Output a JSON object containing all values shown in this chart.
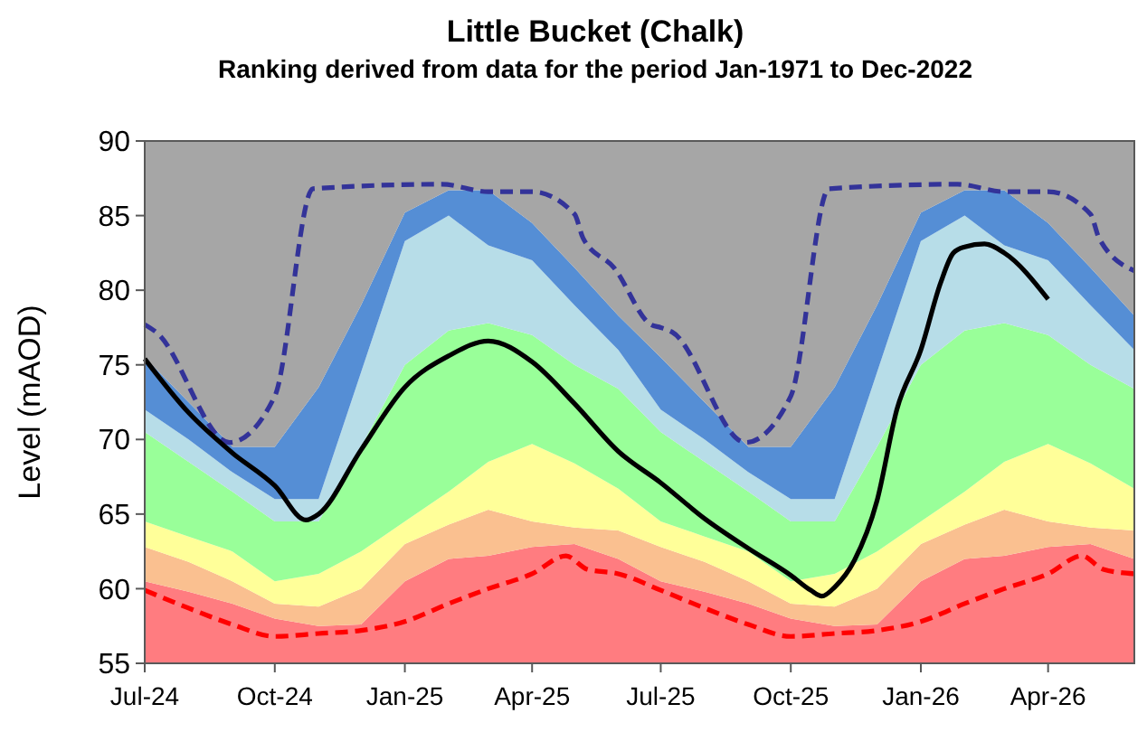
{
  "chart_data": {
    "type": "area",
    "title": "Little Bucket (Chalk)",
    "subtitle": "Ranking derived from data for the period Jan-1971 to Dec-2022",
    "ylabel": "Level (mAOD)",
    "x": [
      "2024-07-01",
      "2024-08-01",
      "2024-09-01",
      "2024-10-01",
      "2024-11-01",
      "2024-12-01",
      "2025-01-01",
      "2025-02-01",
      "2025-03-01",
      "2025-04-01",
      "2025-05-01",
      "2025-06-01",
      "2025-07-01",
      "2025-08-01",
      "2025-09-01",
      "2025-10-01",
      "2025-11-01",
      "2025-12-01",
      "2026-01-01",
      "2026-02-01",
      "2026-03-01",
      "2026-04-01",
      "2026-05-01",
      "2026-06-01"
    ],
    "series": [
      {
        "color": "#ff7c80",
        "values": [
          60.5,
          59.8,
          59,
          58,
          57.5,
          57.6,
          60.5,
          62,
          62.2,
          62.8,
          63,
          62,
          60.5,
          59.8,
          59,
          58,
          57.5,
          57.6,
          60.5,
          62,
          62.2,
          62.8,
          63,
          62
        ]
      },
      {
        "color": "#fac090",
        "values": [
          62.8,
          61.8,
          60.5,
          59,
          58.8,
          60,
          63,
          64.3,
          65.3,
          64.5,
          64.1,
          63.9,
          62.8,
          61.8,
          60.5,
          59,
          58.8,
          60,
          63,
          64.3,
          65.3,
          64.5,
          64.1,
          63.9
        ]
      },
      {
        "color": "#ffff99",
        "values": [
          64.5,
          63.5,
          62.5,
          60.5,
          61,
          62.5,
          64.5,
          66.5,
          68.5,
          69.7,
          68.4,
          66.7,
          64.5,
          63.5,
          62.5,
          60.5,
          61,
          62.5,
          64.5,
          66.5,
          68.5,
          69.7,
          68.4,
          66.7
        ]
      },
      {
        "color": "#99ff99",
        "values": [
          70.5,
          68.5,
          66.5,
          64.5,
          64.5,
          69.5,
          75,
          77.3,
          77.8,
          77,
          75,
          73.4,
          70.5,
          68.5,
          66.5,
          64.5,
          64.5,
          69.5,
          75,
          77.3,
          77.8,
          77,
          75,
          73.4
        ]
      },
      {
        "color": "#b7dde8",
        "values": [
          72,
          70,
          67.8,
          66,
          66,
          74.5,
          83.3,
          85,
          83,
          82,
          79,
          76,
          72,
          70,
          67.8,
          66,
          66,
          74.5,
          83.3,
          85,
          83,
          82,
          79,
          76
        ]
      },
      {
        "color": "#558ed5",
        "values": [
          75.5,
          72.5,
          69.5,
          69.5,
          73.5,
          79,
          85.2,
          86.7,
          86.7,
          84.5,
          81.5,
          78.3,
          75.5,
          72.5,
          69.5,
          69.5,
          73.5,
          79,
          85.2,
          86.7,
          86.7,
          84.5,
          81.5,
          78.3
        ]
      },
      {
        "color": "#a6a6a6",
        "values": [
          90,
          90,
          90,
          90,
          90,
          90,
          90,
          90,
          90,
          90,
          90,
          90,
          90,
          90,
          90,
          90,
          90,
          90,
          90,
          90,
          90,
          90,
          90,
          90
        ]
      },
      {
        "type": "line",
        "color": "#333399",
        "line_style": "dashed",
        "x": [
          "2024-07-01",
          "2024-07-09",
          "2024-08-30",
          "2024-10-01",
          "2024-10-28",
          "2025-01-27",
          "2025-03-01",
          "2025-04-01",
          "2025-05-01",
          "2025-05-07",
          "2025-05-29",
          "2025-06-24",
          "2025-07-01",
          "2025-07-09",
          "2025-08-30",
          "2025-10-01",
          "2025-10-28",
          "2026-01-27",
          "2026-03-01",
          "2026-04-01",
          "2026-05-01",
          "2026-05-07",
          "2026-06-01"
        ],
        "values": [
          77.7,
          77.2,
          69.8,
          72.9,
          86.8,
          87.1,
          86.6,
          86.6,
          85.1,
          83.5,
          81.5,
          77.7,
          77.5,
          77.2,
          69.8,
          72.9,
          86.8,
          87.1,
          86.6,
          86.6,
          85.1,
          83.5,
          81.3
        ]
      },
      {
        "type": "line",
        "color": "#ff0000",
        "line_style": "dashed",
        "x": [
          "2024-07-01",
          "2024-08-01",
          "2024-09-01",
          "2024-10-01",
          "2024-11-01",
          "2024-12-01",
          "2025-01-01",
          "2025-02-01",
          "2025-03-01",
          "2025-04-01",
          "2025-04-25",
          "2025-05-10",
          "2025-06-01",
          "2025-07-01",
          "2025-08-01",
          "2025-09-01",
          "2025-10-01",
          "2025-11-01",
          "2025-12-01",
          "2026-01-01",
          "2026-02-01",
          "2026-03-01",
          "2026-04-01",
          "2026-04-25",
          "2026-05-10",
          "2026-06-01"
        ],
        "values": [
          59.9,
          58.7,
          57.6,
          56.8,
          57,
          57.2,
          57.8,
          59,
          60,
          61,
          62.2,
          61.3,
          61,
          59.9,
          58.7,
          57.6,
          56.8,
          57,
          57.2,
          57.8,
          59,
          60,
          61,
          62.2,
          61.3,
          61
        ]
      },
      {
        "type": "line",
        "color": "#000000",
        "line_style": "solid",
        "x": [
          "2024-07-01",
          "2024-08-01",
          "2024-09-01",
          "2024-10-01",
          "2024-10-23",
          "2024-11-01",
          "2024-12-01",
          "2025-01-01",
          "2025-02-01",
          "2025-03-01",
          "2025-04-01",
          "2025-05-01",
          "2025-06-01",
          "2025-07-01",
          "2025-08-01",
          "2025-09-01",
          "2025-10-01",
          "2025-10-15",
          "2025-10-23",
          "2025-11-01",
          "2025-11-15",
          "2025-12-01",
          "2025-12-15",
          "2026-01-01",
          "2026-01-15",
          "2026-01-24",
          "2026-02-01",
          "2026-02-15",
          "2026-03-01",
          "2026-04-01"
        ],
        "values": [
          75.4,
          71.8,
          69.1,
          66.9,
          64.6,
          65,
          69.3,
          73.5,
          75.6,
          76.6,
          75.2,
          72.4,
          69.2,
          67.1,
          64.7,
          62.7,
          60.9,
          59.9,
          59.5,
          60.1,
          61.9,
          65.9,
          72,
          76,
          80.5,
          82.5,
          82.9,
          83.1,
          82.5,
          79.4
        ]
      }
    ],
    "xlim": [
      "2024-07-01",
      "2026-06-01"
    ],
    "xticks": [
      {
        "value": "2024-07-01",
        "label": "Jul-24"
      },
      {
        "value": "2024-10-01",
        "label": "Oct-24"
      },
      {
        "value": "2025-01-01",
        "label": "Jan-25"
      },
      {
        "value": "2025-04-01",
        "label": "Apr-25"
      },
      {
        "value": "2025-07-01",
        "label": "Jul-25"
      },
      {
        "value": "2025-10-01",
        "label": "Oct-25"
      },
      {
        "value": "2026-01-01",
        "label": "Jan-26"
      },
      {
        "value": "2026-04-01",
        "label": "Apr-26"
      }
    ],
    "ylim": [
      55,
      90
    ],
    "yticks": [
      55,
      60,
      65,
      70,
      75,
      80,
      85,
      90
    ],
    "grid": false
  }
}
